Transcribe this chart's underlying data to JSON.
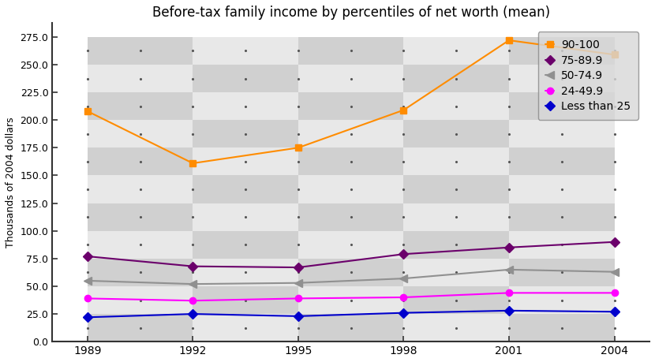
{
  "title": "Before-tax family income by percentiles of net worth (mean)",
  "ylabel": "Thousands of 2004 dollars",
  "years": [
    1989,
    1992,
    1995,
    1998,
    2001,
    2004
  ],
  "series": [
    {
      "label": "90-100",
      "color": "#FF8C00",
      "marker": "s",
      "markersize": 6,
      "values": [
        208,
        161,
        175,
        209,
        272,
        259
      ]
    },
    {
      "label": "75-89.9",
      "color": "#6B006B",
      "marker": "D",
      "markersize": 6,
      "values": [
        77,
        68,
        67,
        79,
        85,
        90
      ]
    },
    {
      "label": "50-74.9",
      "color": "#909090",
      "marker": "<",
      "markersize": 7,
      "values": [
        55,
        52,
        53,
        57,
        65,
        63
      ]
    },
    {
      "label": "24-49.9",
      "color": "#FF00FF",
      "marker": "o",
      "markersize": 6,
      "values": [
        39,
        37,
        39,
        40,
        44,
        44
      ]
    },
    {
      "label": "Less than 25",
      "color": "#0000CC",
      "marker": "D",
      "markersize": 6,
      "values": [
        22,
        25,
        23,
        26,
        28,
        27
      ]
    }
  ],
  "ylim": [
    0.0,
    287.5
  ],
  "yticks": [
    0.0,
    25.0,
    50.0,
    75.0,
    100.0,
    125.0,
    150.0,
    175.0,
    200.0,
    225.0,
    250.0,
    275.0
  ],
  "xticks": [
    1989,
    1992,
    1995,
    1998,
    2001,
    2004
  ],
  "checker_light": "#E8E8E8",
  "checker_dark": "#D0D0D0",
  "dot_color": "#555555",
  "legend_bg": "#D8D8D8",
  "linewidth": 1.5
}
